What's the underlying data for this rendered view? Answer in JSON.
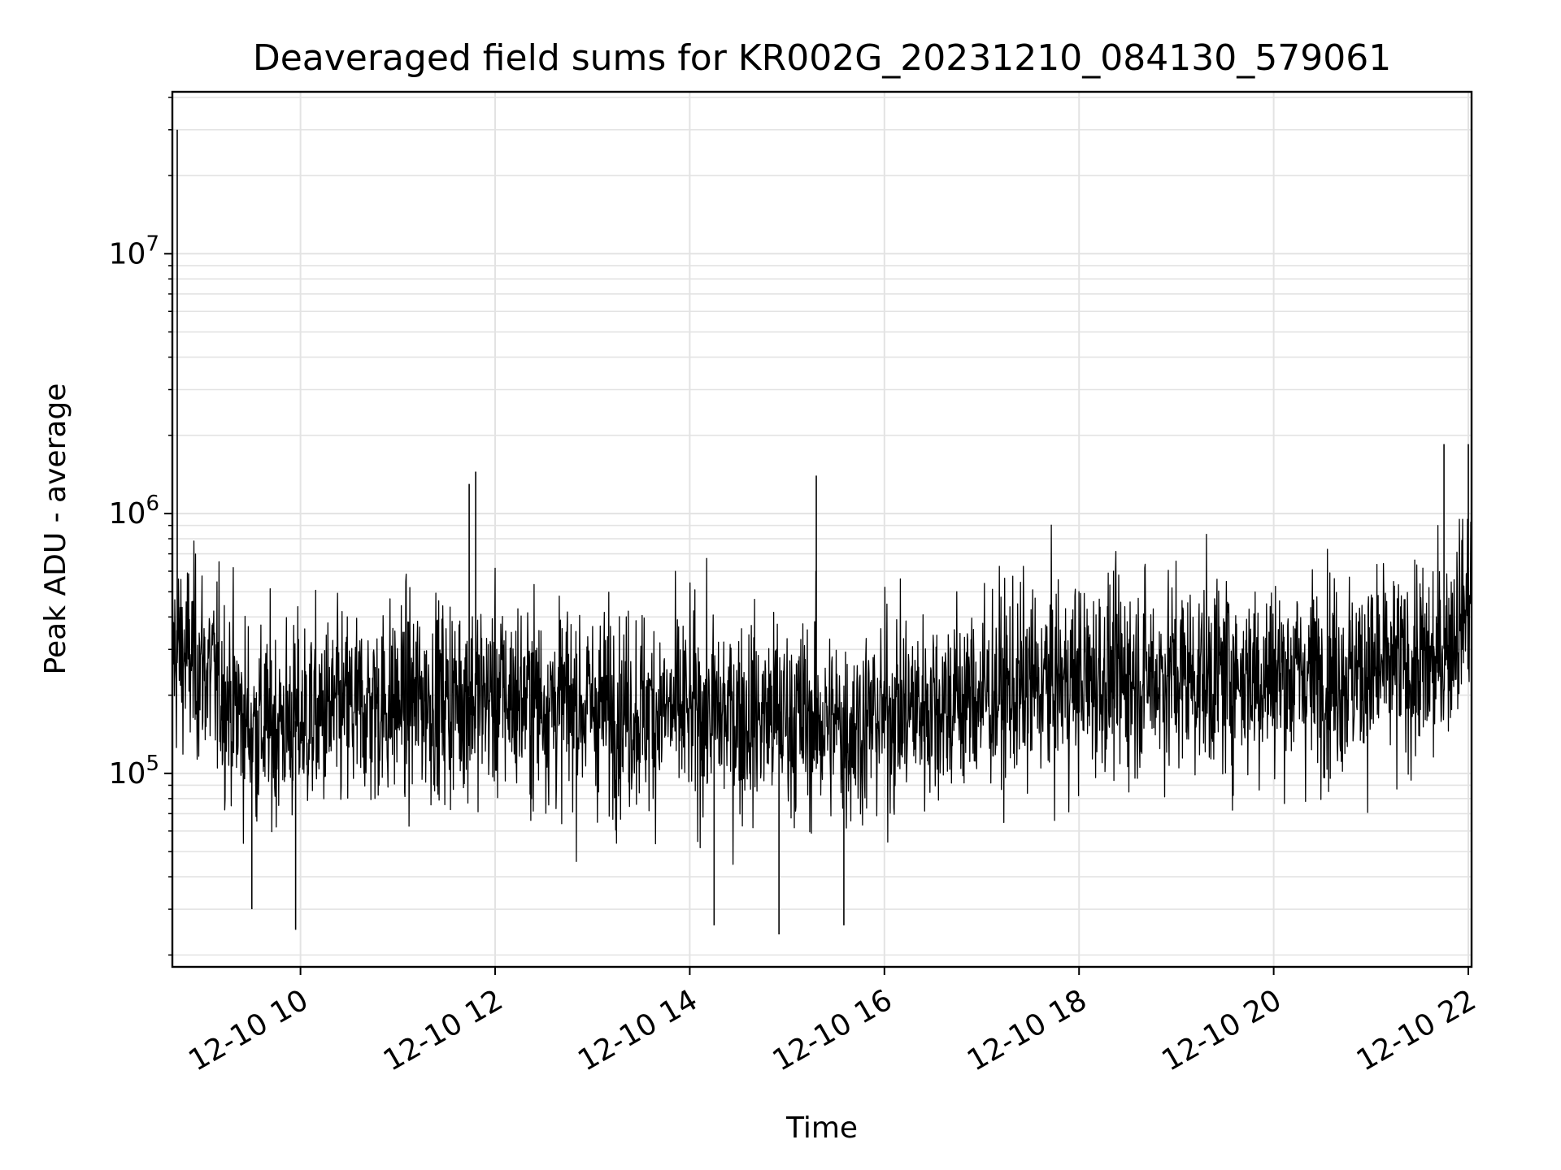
{
  "chart_data": {
    "type": "line",
    "title": "Deaveraged field sums for KR002G_20231210_084130_579061",
    "xlabel": "Time",
    "ylabel": "Peak ADU - average",
    "x_scale": "time",
    "y_scale": "log",
    "xlim": [
      "2023-12-10T08:41",
      "2023-12-10T22:02"
    ],
    "ylim": [
      18000,
      42000000
    ],
    "grid": true,
    "x_ticks": [
      {
        "value": "2023-12-10T10:00",
        "label": "12-10 10"
      },
      {
        "value": "2023-12-10T12:00",
        "label": "12-10 12"
      },
      {
        "value": "2023-12-10T14:00",
        "label": "12-10 14"
      },
      {
        "value": "2023-12-10T16:00",
        "label": "12-10 16"
      },
      {
        "value": "2023-12-10T18:00",
        "label": "12-10 18"
      },
      {
        "value": "2023-12-10T20:00",
        "label": "12-10 20"
      },
      {
        "value": "2023-12-10T22:00",
        "label": "12-10 22"
      }
    ],
    "y_ticks": [
      {
        "value": 100000,
        "base": "10",
        "exp": "5"
      },
      {
        "value": 1000000,
        "base": "10",
        "exp": "6"
      },
      {
        "value": 10000000,
        "base": "10",
        "exp": "7"
      }
    ],
    "series": [
      {
        "color": "#000000",
        "trend": [
          {
            "x": "2023-12-10T08:41",
            "y": 300000
          },
          {
            "x": "2023-12-10T09:00",
            "y": 260000
          },
          {
            "x": "2023-12-10T09:30",
            "y": 150000
          },
          {
            "x": "2023-12-10T10:00",
            "y": 160000
          },
          {
            "x": "2023-12-10T11:00",
            "y": 190000
          },
          {
            "x": "2023-12-10T12:00",
            "y": 200000
          },
          {
            "x": "2023-12-10T13:00",
            "y": 180000
          },
          {
            "x": "2023-12-10T14:00",
            "y": 170000
          },
          {
            "x": "2023-12-10T15:00",
            "y": 165000
          },
          {
            "x": "2023-12-10T15:40",
            "y": 150000
          },
          {
            "x": "2023-12-10T16:00",
            "y": 170000
          },
          {
            "x": "2023-12-10T17:00",
            "y": 200000
          },
          {
            "x": "2023-12-10T18:00",
            "y": 230000
          },
          {
            "x": "2023-12-10T19:00",
            "y": 240000
          },
          {
            "x": "2023-12-10T20:00",
            "y": 240000
          },
          {
            "x": "2023-12-10T21:00",
            "y": 245000
          },
          {
            "x": "2023-12-10T21:40",
            "y": 260000
          },
          {
            "x": "2023-12-10T22:02",
            "y": 500000
          }
        ],
        "spikes": [
          {
            "x": "2023-12-10T08:44",
            "y": 30000000
          },
          {
            "x": "2023-12-10T11:44",
            "y": 1300000
          },
          {
            "x": "2023-12-10T11:48",
            "y": 1450000
          },
          {
            "x": "2023-12-10T15:18",
            "y": 1400000
          },
          {
            "x": "2023-12-10T21:45",
            "y": 1850000
          },
          {
            "x": "2023-12-10T22:00",
            "y": 1850000
          }
        ],
        "dips": [
          {
            "x": "2023-12-10T09:30",
            "y": 30000
          },
          {
            "x": "2023-12-10T09:57",
            "y": 25000
          },
          {
            "x": "2023-12-10T14:15",
            "y": 26000
          },
          {
            "x": "2023-12-10T14:55",
            "y": 24000
          },
          {
            "x": "2023-12-10T15:35",
            "y": 26000
          }
        ]
      }
    ]
  }
}
